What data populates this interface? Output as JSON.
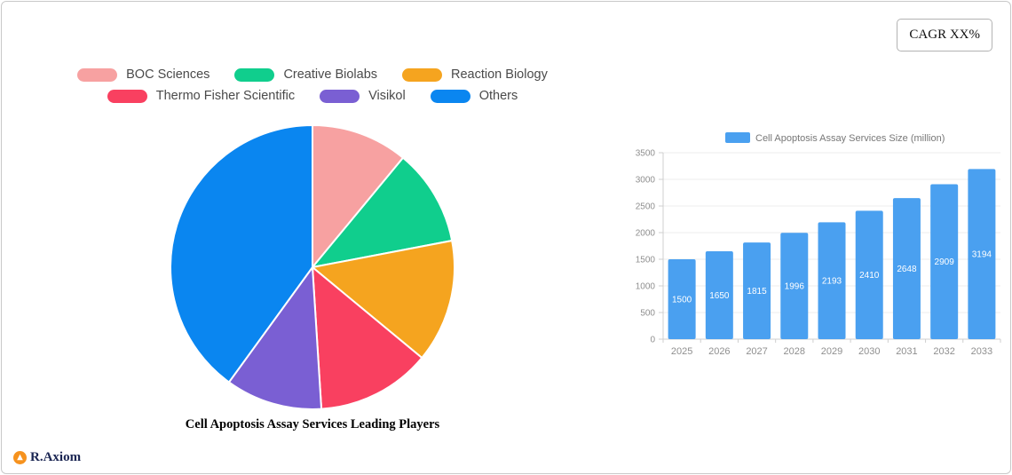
{
  "cagr_badge": "CAGR XX%",
  "brand": {
    "name": "R.Axiom",
    "icon": "orange-circle-logo"
  },
  "chart_data": [
    {
      "type": "pie",
      "title": "Cell Apoptosis Assay Services Leading Players",
      "labels": [
        "BOC Sciences",
        "Creative Biolabs",
        "Reaction Biology",
        "Thermo Fisher Scientific",
        "Visikol",
        "Others"
      ],
      "values": [
        11,
        11,
        14,
        13,
        11,
        40
      ],
      "colors": [
        "#F7A1A1",
        "#10CE8D",
        "#F5A41F",
        "#F94060",
        "#7A5FD3",
        "#0A86F0"
      ],
      "legend_rows": [
        [
          0,
          1,
          2
        ],
        [
          3,
          4,
          5
        ]
      ],
      "start_angle_deg": -90,
      "legend_position": "top"
    },
    {
      "type": "bar",
      "legend": "Cell Apoptosis Assay Services Size (million)",
      "categories": [
        "2025",
        "2026",
        "2027",
        "2028",
        "2029",
        "2030",
        "2031",
        "2032",
        "2033"
      ],
      "values": [
        1500,
        1650,
        1815,
        1996,
        2193,
        2410,
        2648,
        2909,
        3194
      ],
      "ylim": [
        0,
        3500
      ],
      "yticks": [
        0,
        500,
        1000,
        1500,
        2000,
        2500,
        3000,
        3500
      ],
      "bar_color": "#4AA0F0",
      "value_label_color": "#ffffff",
      "axis_label_color": "#8f8f8f",
      "grid": true,
      "legend_position": "top"
    }
  ]
}
